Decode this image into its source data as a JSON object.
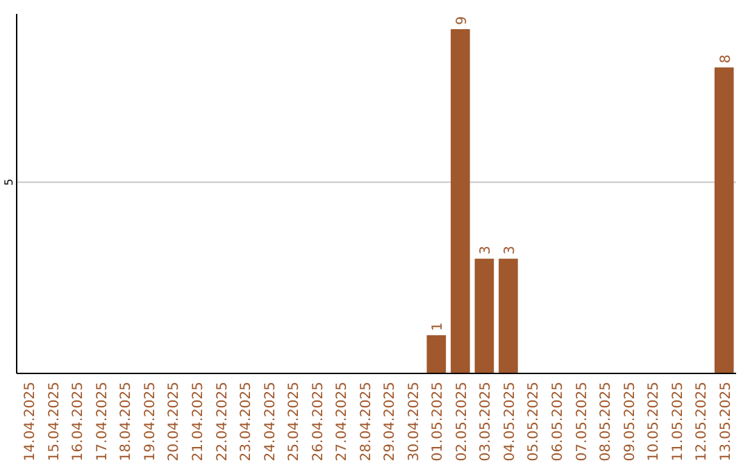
{
  "chart_data": {
    "type": "bar",
    "categories": [
      "14.04.2025",
      "15.04.2025",
      "16.04.2025",
      "17.04.2025",
      "18.04.2025",
      "19.04.2025",
      "20.04.2025",
      "21.04.2025",
      "22.04.2025",
      "23.04.2025",
      "24.04.2025",
      "25.04.2025",
      "26.04.2025",
      "27.04.2025",
      "28.04.2025",
      "29.04.2025",
      "30.04.2025",
      "01.05.2025",
      "02.05.2025",
      "03.05.2025",
      "04.05.2025",
      "05.05.2025",
      "06.05.2025",
      "07.05.2025",
      "08.05.2025",
      "09.05.2025",
      "10.05.2025",
      "11.05.2025",
      "12.05.2025",
      "13.05.2025"
    ],
    "values": [
      null,
      null,
      null,
      null,
      null,
      null,
      null,
      null,
      null,
      null,
      null,
      null,
      null,
      null,
      null,
      null,
      null,
      1,
      9,
      3,
      3,
      null,
      null,
      null,
      null,
      null,
      null,
      null,
      null,
      8
    ],
    "data_labels": true,
    "color": "#a0582c",
    "ylim": [
      0,
      9.4
    ],
    "ref_lines": [
      {
        "axis": "y",
        "value": 5,
        "label": "5",
        "color": "#c8c8c8"
      }
    ]
  }
}
